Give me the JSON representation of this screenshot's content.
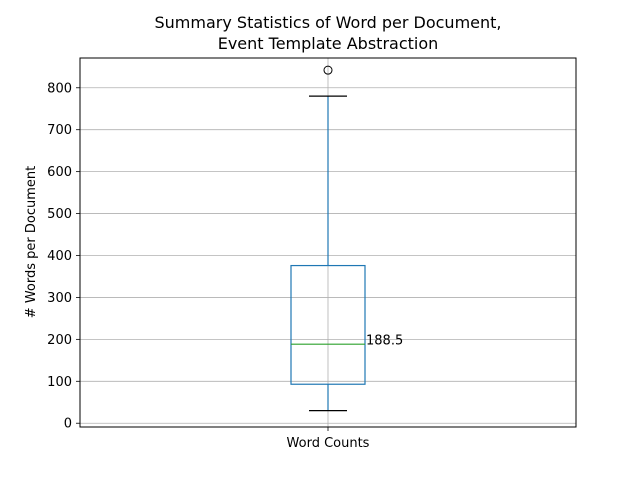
{
  "chart_data": {
    "type": "box",
    "title_lines": [
      "Summary Statistics of Word per Document,",
      "Event Template Abstraction"
    ],
    "xlabel": "",
    "ylabel": "# Words per Document",
    "categories": [
      "Word Counts"
    ],
    "ylim": [
      -9,
      871
    ],
    "yticks": [
      0,
      100,
      200,
      300,
      400,
      500,
      600,
      700,
      800
    ],
    "grid": true,
    "series": [
      {
        "name": "Word Counts",
        "whisker_low": 30,
        "q1": 93,
        "median": 188.5,
        "q3": 376,
        "whisker_high": 780,
        "outliers": [
          842
        ]
      }
    ],
    "annotations": [
      {
        "text": "188.5",
        "y": 188.5
      }
    ]
  },
  "colors": {
    "box": "#1f77b4",
    "median": "#2ca02c",
    "whisker_cap": "#000000",
    "grid": "#b0b0b0",
    "axes": "#000000"
  }
}
